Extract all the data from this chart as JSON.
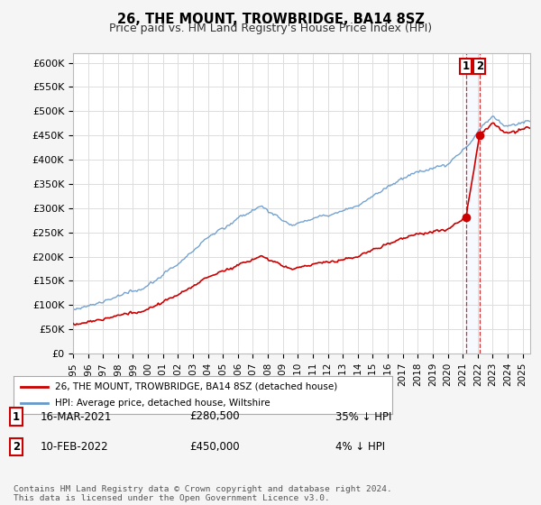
{
  "title": "26, THE MOUNT, TROWBRIDGE, BA14 8SZ",
  "subtitle": "Price paid vs. HM Land Registry's House Price Index (HPI)",
  "ylabel_ticks": [
    "£0",
    "£50K",
    "£100K",
    "£150K",
    "£200K",
    "£250K",
    "£300K",
    "£350K",
    "£400K",
    "£450K",
    "£500K",
    "£550K",
    "£600K"
  ],
  "ytick_values": [
    0,
    50000,
    100000,
    150000,
    200000,
    250000,
    300000,
    350000,
    400000,
    450000,
    500000,
    550000,
    600000
  ],
  "ylim": [
    0,
    620000
  ],
  "xlim_start": 1995.0,
  "xlim_end": 2025.5,
  "legend_line1": "26, THE MOUNT, TROWBRIDGE, BA14 8SZ (detached house)",
  "legend_line2": "HPI: Average price, detached house, Wiltshire",
  "line1_color": "#cc0000",
  "line2_color": "#6699cc",
  "point1_label": "1",
  "point1_date": "16-MAR-2021",
  "point1_price": "£280,500",
  "point1_hpi": "35% ↓ HPI",
  "point1_x": 2021.21,
  "point1_y": 280500,
  "point2_label": "2",
  "point2_date": "10-FEB-2022",
  "point2_price": "£450,000",
  "point2_hpi": "4% ↓ HPI",
  "point2_x": 2022.12,
  "point2_y": 450000,
  "footer": "Contains HM Land Registry data © Crown copyright and database right 2024.\nThis data is licensed under the Open Government Licence v3.0.",
  "bg_color": "#f5f5f5",
  "plot_bg_color": "#ffffff",
  "grid_color": "#dddddd",
  "shade_color": "#ddeeff"
}
